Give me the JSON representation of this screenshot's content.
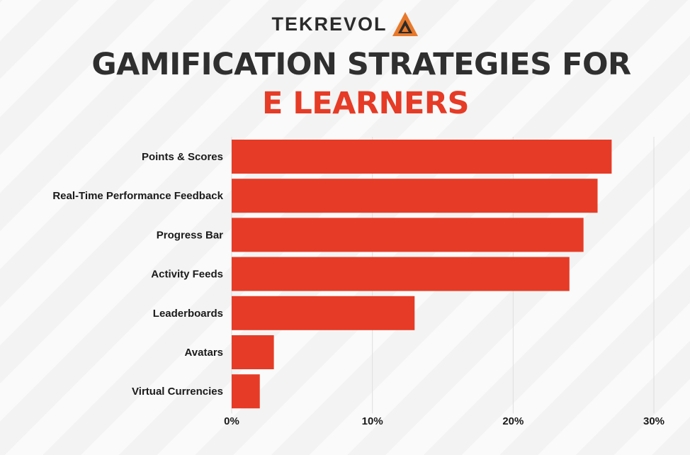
{
  "brand": {
    "name": "TEKREVOL",
    "accent_color": "#e8792a",
    "dark_color": "#2b2b2b"
  },
  "title": {
    "line1": "GAMIFICATION STRATEGIES FOR",
    "line2": "E LEARNERS",
    "line1_color": "#2f2f2f",
    "line2_color": "#e63b26"
  },
  "chart_data": {
    "type": "bar",
    "orientation": "horizontal",
    "categories": [
      "Points & Scores",
      "Real-Time Performance Feedback",
      "Progress Bar",
      "Activity Feeds",
      "Leaderboards",
      "Avatars",
      "Virtual Currencies"
    ],
    "values": [
      27,
      26,
      25,
      24,
      13,
      3,
      2
    ],
    "xlim": [
      0,
      30
    ],
    "xticks": [
      0,
      10,
      20,
      30
    ],
    "xtick_labels": [
      "0%",
      "10%",
      "20%",
      "30%"
    ],
    "bar_color": "#e63b26",
    "grid": true
  }
}
